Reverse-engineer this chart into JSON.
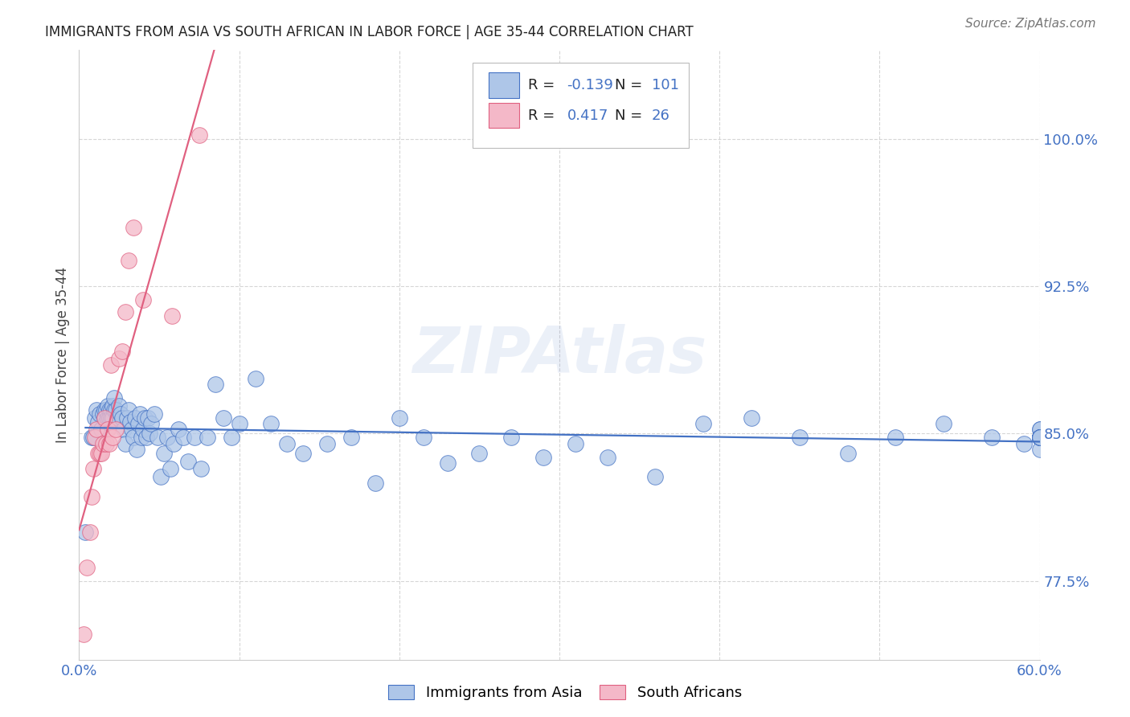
{
  "title": "IMMIGRANTS FROM ASIA VS SOUTH AFRICAN IN LABOR FORCE | AGE 35-44 CORRELATION CHART",
  "source": "Source: ZipAtlas.com",
  "ylabel": "In Labor Force | Age 35-44",
  "xlim": [
    0.0,
    0.6
  ],
  "ylim": [
    0.735,
    1.045
  ],
  "yticks": [
    0.775,
    0.85,
    0.925,
    1.0
  ],
  "ytick_labels": [
    "77.5%",
    "85.0%",
    "92.5%",
    "100.0%"
  ],
  "xticks": [
    0.0,
    0.1,
    0.2,
    0.3,
    0.4,
    0.5,
    0.6
  ],
  "r_asia": -0.139,
  "n_asia": 101,
  "r_south_african": 0.417,
  "n_south_african": 26,
  "asia_color": "#aec6e8",
  "south_african_color": "#f4b8c8",
  "line_asia_color": "#4472c4",
  "line_sa_color": "#e06080",
  "background_color": "#ffffff",
  "grid_color": "#cccccc",
  "title_color": "#222222",
  "axis_label_color": "#444444",
  "tick_color": "#4472c4",
  "asia_x": [
    0.004,
    0.008,
    0.009,
    0.01,
    0.011,
    0.012,
    0.013,
    0.014,
    0.015,
    0.016,
    0.016,
    0.017,
    0.017,
    0.018,
    0.018,
    0.019,
    0.019,
    0.02,
    0.02,
    0.021,
    0.021,
    0.022,
    0.022,
    0.023,
    0.024,
    0.025,
    0.026,
    0.027,
    0.028,
    0.029,
    0.03,
    0.031,
    0.032,
    0.033,
    0.034,
    0.035,
    0.036,
    0.037,
    0.038,
    0.039,
    0.04,
    0.041,
    0.042,
    0.043,
    0.044,
    0.045,
    0.047,
    0.049,
    0.051,
    0.053,
    0.055,
    0.057,
    0.059,
    0.062,
    0.065,
    0.068,
    0.072,
    0.076,
    0.08,
    0.085,
    0.09,
    0.095,
    0.1,
    0.11,
    0.12,
    0.13,
    0.14,
    0.155,
    0.17,
    0.185,
    0.2,
    0.215,
    0.23,
    0.25,
    0.27,
    0.29,
    0.31,
    0.33,
    0.36,
    0.39,
    0.42,
    0.45,
    0.48,
    0.51,
    0.54,
    0.57,
    0.59,
    0.6,
    0.6,
    0.6,
    0.6,
    0.6,
    0.6,
    0.6,
    0.6,
    0.6,
    0.6,
    0.6,
    0.6,
    0.6,
    0.6
  ],
  "asia_y": [
    0.8,
    0.848,
    0.848,
    0.858,
    0.862,
    0.856,
    0.86,
    0.852,
    0.86,
    0.858,
    0.862,
    0.856,
    0.862,
    0.858,
    0.864,
    0.862,
    0.858,
    0.862,
    0.858,
    0.864,
    0.858,
    0.862,
    0.868,
    0.862,
    0.858,
    0.864,
    0.86,
    0.858,
    0.852,
    0.845,
    0.858,
    0.862,
    0.856,
    0.852,
    0.848,
    0.858,
    0.842,
    0.855,
    0.86,
    0.848,
    0.852,
    0.858,
    0.848,
    0.858,
    0.85,
    0.855,
    0.86,
    0.848,
    0.828,
    0.84,
    0.848,
    0.832,
    0.845,
    0.852,
    0.848,
    0.836,
    0.848,
    0.832,
    0.848,
    0.875,
    0.858,
    0.848,
    0.855,
    0.878,
    0.855,
    0.845,
    0.84,
    0.845,
    0.848,
    0.825,
    0.858,
    0.848,
    0.835,
    0.84,
    0.848,
    0.838,
    0.845,
    0.838,
    0.828,
    0.855,
    0.858,
    0.848,
    0.84,
    0.848,
    0.855,
    0.848,
    0.845,
    0.852,
    0.848,
    0.842,
    0.852,
    0.848,
    0.848,
    0.848,
    0.848,
    0.848,
    0.848,
    0.848,
    0.848,
    0.848,
    0.848
  ],
  "sa_x": [
    0.003,
    0.005,
    0.007,
    0.008,
    0.009,
    0.01,
    0.011,
    0.012,
    0.013,
    0.014,
    0.015,
    0.016,
    0.017,
    0.018,
    0.019,
    0.02,
    0.021,
    0.023,
    0.025,
    0.027,
    0.029,
    0.031,
    0.034,
    0.04,
    0.058,
    0.075
  ],
  "sa_y": [
    0.748,
    0.782,
    0.8,
    0.818,
    0.832,
    0.848,
    0.852,
    0.84,
    0.84,
    0.84,
    0.845,
    0.858,
    0.845,
    0.852,
    0.845,
    0.885,
    0.848,
    0.852,
    0.888,
    0.892,
    0.912,
    0.938,
    0.955,
    0.918,
    0.91,
    1.002
  ]
}
